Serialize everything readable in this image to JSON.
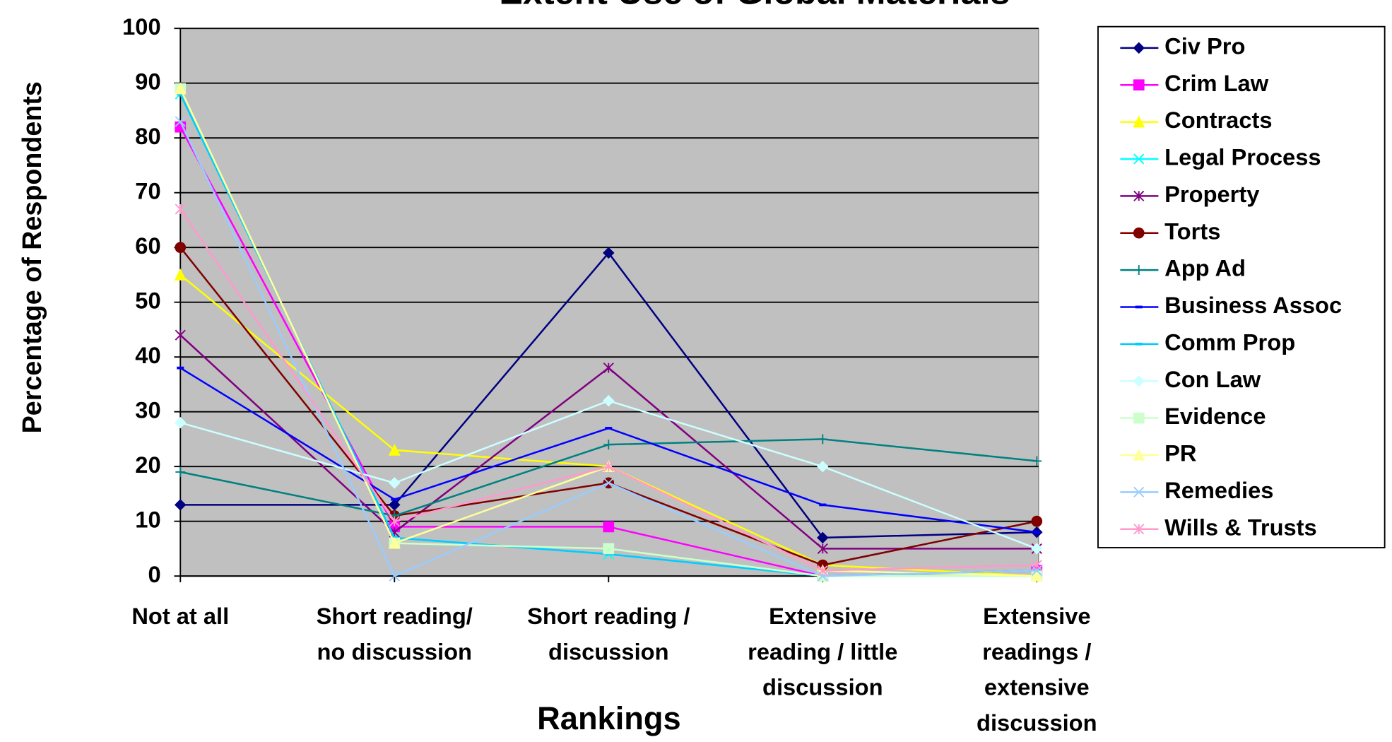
{
  "chart_data": {
    "type": "line",
    "title": "Extent Use of Global Materials",
    "x_label": "Rankings",
    "y_label": "Percentage of Respondents",
    "categories": [
      "Not at all",
      "Short reading/\nno discussion",
      "Short reading /\ndiscussion",
      "Extensive\nreading / little\ndiscussion",
      "Extensive\nreadings /\nextensive\ndiscussion"
    ],
    "ylim": [
      0,
      100
    ],
    "yticks": [
      0,
      10,
      20,
      30,
      40,
      50,
      60,
      70,
      80,
      90,
      100
    ],
    "grid": true,
    "legend": "right",
    "series": [
      {
        "name": "Civ Pro",
        "color": "#000080",
        "marker": "diamond",
        "values": [
          13,
          13,
          59,
          7,
          8
        ]
      },
      {
        "name": "Crim Law",
        "color": "#ff00ff",
        "marker": "square",
        "values": [
          82,
          9,
          9,
          0,
          1
        ]
      },
      {
        "name": "Contracts",
        "color": "#ffff00",
        "marker": "triangle",
        "values": [
          55,
          23,
          20,
          2,
          0
        ]
      },
      {
        "name": "Legal Process",
        "color": "#00ffff",
        "marker": "x",
        "values": [
          88,
          7,
          4,
          0,
          0
        ]
      },
      {
        "name": "Property",
        "color": "#800080",
        "marker": "star",
        "values": [
          44,
          8,
          38,
          5,
          5
        ]
      },
      {
        "name": "Torts",
        "color": "#800000",
        "marker": "circle",
        "values": [
          60,
          11,
          17,
          2,
          10
        ]
      },
      {
        "name": "App Ad",
        "color": "#008080",
        "marker": "plus",
        "values": [
          19,
          11,
          24,
          25,
          21
        ]
      },
      {
        "name": "Business Assoc",
        "color": "#0000ff",
        "marker": "dash",
        "values": [
          38,
          14,
          27,
          13,
          8
        ]
      },
      {
        "name": "Comm Prop",
        "color": "#00ccff",
        "marker": "dash",
        "values": [
          88,
          7,
          4,
          0,
          1
        ]
      },
      {
        "name": "Con Law",
        "color": "#ccffff",
        "marker": "diamond",
        "values": [
          28,
          17,
          32,
          20,
          5
        ]
      },
      {
        "name": "Evidence",
        "color": "#ccffcc",
        "marker": "square",
        "values": [
          89,
          6,
          5,
          0,
          0
        ]
      },
      {
        "name": "PR",
        "color": "#ffff99",
        "marker": "triangle",
        "values": [
          89,
          6,
          20,
          1,
          0
        ]
      },
      {
        "name": "Remedies",
        "color": "#99ccff",
        "marker": "x",
        "values": [
          83,
          0,
          17,
          0,
          1
        ]
      },
      {
        "name": "Wills & Trusts",
        "color": "#ff99cc",
        "marker": "star",
        "values": [
          67,
          10,
          20,
          1,
          2
        ]
      }
    ]
  }
}
